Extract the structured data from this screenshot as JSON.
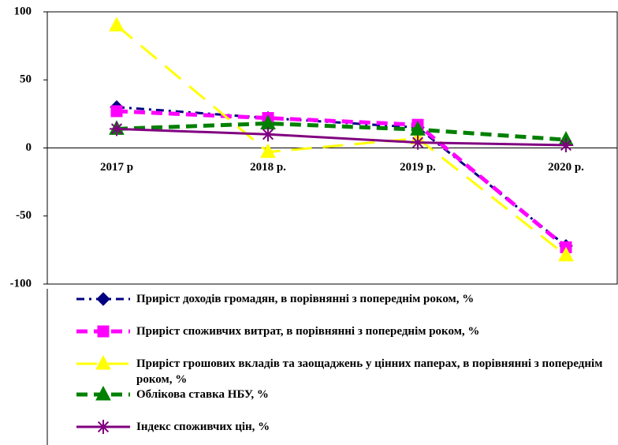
{
  "chart_data": {
    "type": "line",
    "categories": [
      "2017 р",
      "2018 р.",
      "2019 р.",
      "2020 р."
    ],
    "ylim": [
      -100,
      100
    ],
    "yticks": [
      -100,
      -50,
      0,
      50,
      100
    ],
    "series": [
      {
        "name": "Приріст доходів громадян, в порівнянні з попереднім роком, %",
        "color": "#000080",
        "marker": "diamond",
        "dash": "dashdot",
        "values": [
          30,
          22,
          15,
          -72
        ]
      },
      {
        "name": "Приріст споживчих витрат, в порівнянні з попереднім роком, %",
        "color": "#ff00ff",
        "marker": "square",
        "dash": "dashed",
        "values": [
          27,
          22,
          17,
          -73
        ]
      },
      {
        "name": "Приріст грошових вкладів та заощаджень у цінних паперах, в порівнянні з попереднім роком, %",
        "color": "#ffff00",
        "marker": "triangle",
        "dash": "longdash",
        "values": [
          90,
          -3,
          7,
          -79
        ]
      },
      {
        "name": "Облікова ставка НБУ, %",
        "color": "#008000",
        "marker": "triangle",
        "dash": "dashed",
        "values": [
          14,
          18,
          13.5,
          6
        ]
      },
      {
        "name": "Індекс споживчих цін, %",
        "color": "#800080",
        "marker": "star",
        "dash": "solid",
        "values": [
          14,
          10,
          4,
          2
        ]
      }
    ]
  }
}
